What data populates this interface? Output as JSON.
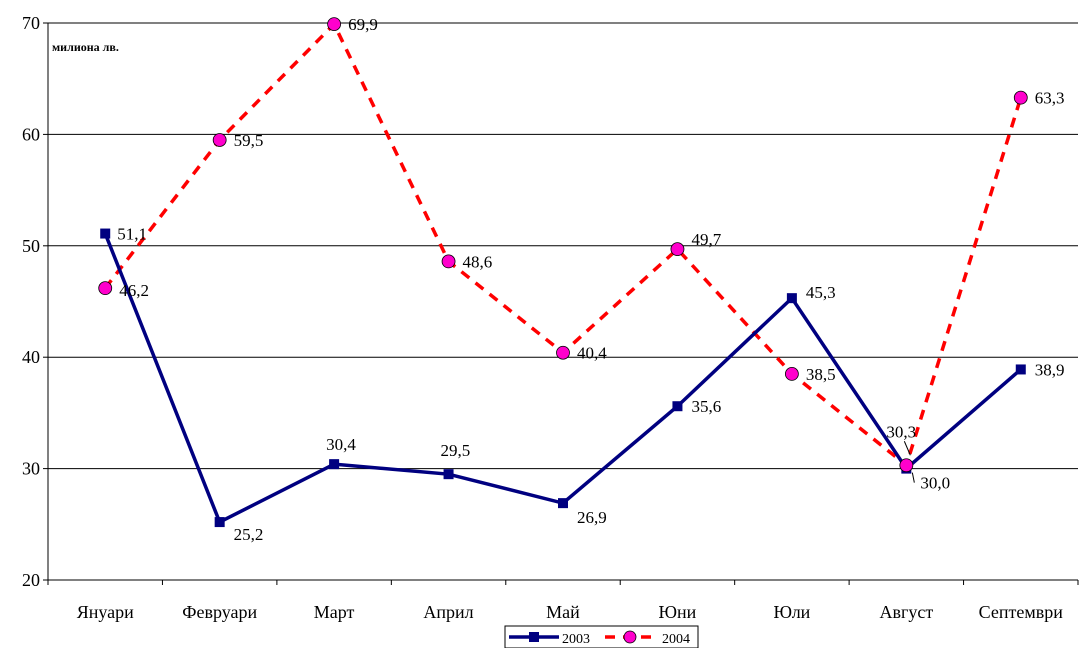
{
  "chart_data": {
    "type": "line",
    "unit_label": "милиона лв.",
    "categories": [
      "Януари",
      "Февруари",
      "Март",
      "Април",
      "Май",
      "Юни",
      "Юли",
      "Август",
      "Септември"
    ],
    "series": [
      {
        "name": "2003",
        "values": [
          51.1,
          25.2,
          30.4,
          29.5,
          26.9,
          35.6,
          45.3,
          30.0,
          38.9
        ],
        "labels": [
          "51,1",
          "25,2",
          "30,4",
          "29,5",
          "26,9",
          "35,6",
          "45,3",
          "30,0",
          "38,9"
        ],
        "color": "#000080",
        "line_style": "solid",
        "marker": "square"
      },
      {
        "name": "2004",
        "values": [
          46.2,
          59.5,
          69.9,
          48.6,
          40.4,
          49.7,
          38.5,
          30.3,
          63.3
        ],
        "labels": [
          "46,2",
          "59,5",
          "69,9",
          "48,6",
          "40,4",
          "49,7",
          "38,5",
          "30,3",
          "63,3"
        ],
        "color": "#FF0000",
        "marker_color": "#FF00CC",
        "line_style": "dashed",
        "marker": "circle"
      }
    ],
    "ylim": [
      20,
      70
    ],
    "yticks": [
      "20",
      "30",
      "40",
      "50",
      "60",
      "70"
    ],
    "grid": true,
    "legend_position": "bottom"
  }
}
